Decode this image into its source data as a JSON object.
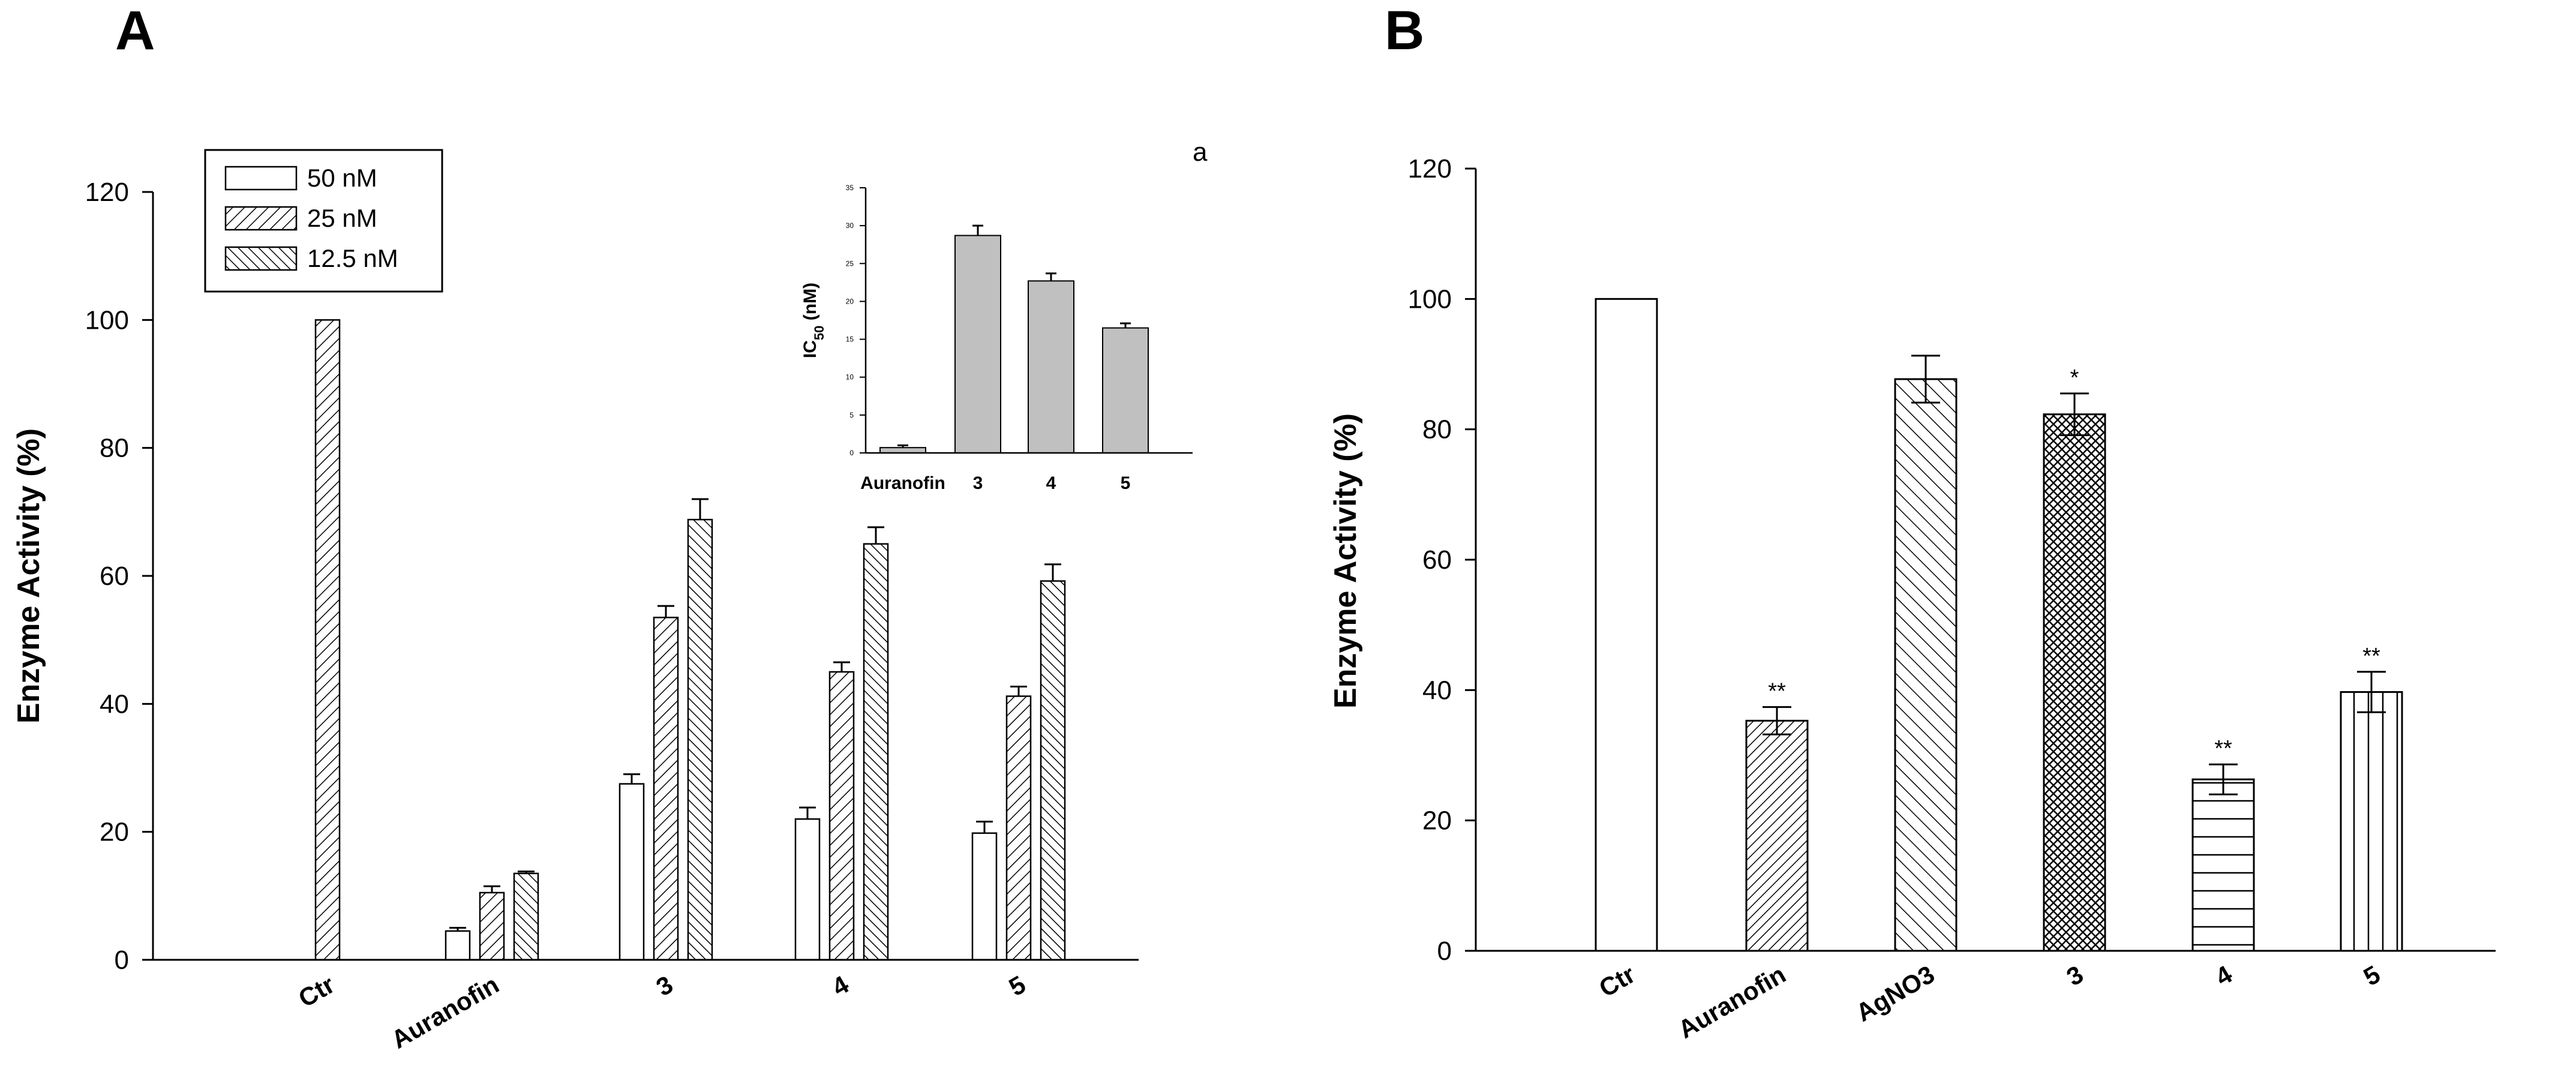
{
  "panelA": {
    "letter": "A",
    "chart_data": {
      "type": "bar",
      "title": "",
      "xlabel": "",
      "ylabel": "Enzyme Activity (%)",
      "ylim": [
        0,
        120
      ],
      "yticks": [
        0,
        20,
        40,
        60,
        80,
        100,
        120
      ],
      "categories": [
        "Ctr",
        "Auranofin",
        "3",
        "4",
        "5"
      ],
      "series": [
        {
          "name": "50 nM",
          "pattern": "white",
          "values": [
            null,
            4.5,
            27.5,
            22,
            19.8
          ],
          "errors": [
            null,
            0.5,
            1.5,
            1.8,
            1.8
          ]
        },
        {
          "name": "25 nM",
          "pattern": "diag-right",
          "values": [
            100,
            10.5,
            53.5,
            45,
            41.2
          ],
          "errors": [
            0,
            1.0,
            1.8,
            1.5,
            1.5
          ]
        },
        {
          "name": "12.5 nM",
          "pattern": "diag-left",
          "values": [
            null,
            13.5,
            68.8,
            65,
            59.2
          ],
          "errors": [
            null,
            0.3,
            3.2,
            2.6,
            2.6
          ]
        }
      ],
      "legend": [
        "50 nM",
        "25 nM",
        "12.5 nM"
      ],
      "legend_position": "top-left"
    },
    "inset": {
      "tag": "a",
      "chart_data": {
        "type": "bar",
        "ylabel_main": "IC",
        "ylabel_sub": "50",
        "ylabel_unit": " (nM)",
        "ylim": [
          0,
          35
        ],
        "yticks": [
          0,
          5,
          10,
          15,
          20,
          25,
          30,
          35
        ],
        "categories": [
          "Auranofin",
          "3",
          "4",
          "5"
        ],
        "values": [
          0.7,
          28.7,
          22.7,
          16.5
        ],
        "errors": [
          0.3,
          1.3,
          1.0,
          0.6
        ],
        "color": "#c0c0c0"
      }
    }
  },
  "panelB": {
    "letter": "B",
    "chart_data": {
      "type": "bar",
      "title": "",
      "xlabel": "",
      "ylabel": "Enzyme Activity (%)",
      "ylim": [
        0,
        120
      ],
      "yticks": [
        0,
        20,
        40,
        60,
        80,
        100,
        120
      ],
      "categories": [
        "Ctr",
        "Auranofin",
        "AgNO3",
        "3",
        "4",
        "5"
      ],
      "values": [
        100,
        35.3,
        87.7,
        82.3,
        26.3,
        39.7
      ],
      "errors": [
        0,
        2.1,
        3.6,
        3.2,
        2.3,
        3.1
      ],
      "patterns": [
        "white",
        "diag-right",
        "diag-left",
        "crosshatch",
        "horizontal",
        "vertical"
      ],
      "significance": [
        "",
        "**",
        "",
        "*",
        "**",
        "**"
      ]
    }
  }
}
